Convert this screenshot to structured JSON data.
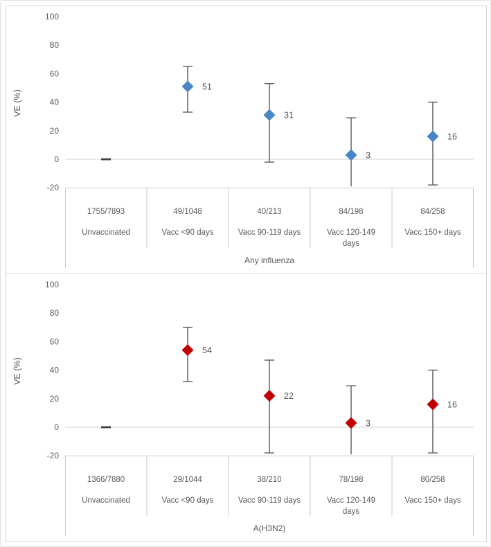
{
  "frame": {
    "outer_border_color": "#e3e3e3",
    "panel_border_color": "#d6d6d6",
    "background": "#ffffff"
  },
  "style": {
    "text_color": "#595959",
    "axis_line_color": "#c9c9c9",
    "zero_line_color": "#d9d9d9",
    "error_bar_color": "#595959",
    "reference_dash_color": "#404040"
  },
  "chart_data": [
    {
      "type": "scatter",
      "subtype": "point-estimate-with-error-bars",
      "group_label": "Any influenza",
      "ylabel": "VE (%)",
      "ylim": [
        -20,
        100
      ],
      "yticks": [
        100,
        80,
        60,
        40,
        20,
        0,
        -20
      ],
      "grid": "zero-line-only",
      "marker_shape": "diamond",
      "marker_color": "#4a86c6",
      "categories": [
        {
          "count": "1755/7893",
          "label_lines": [
            "Unvaccinated"
          ],
          "reference": true,
          "ve": 0
        },
        {
          "count": "49/1048",
          "label_lines": [
            "Vacc <90 days"
          ],
          "ve": 51,
          "ci_low": 33,
          "ci_high": 65
        },
        {
          "count": "40/213",
          "label_lines": [
            "Vacc 90-119 days"
          ],
          "ve": 31,
          "ci_low": -2,
          "ci_high": 53
        },
        {
          "count": "84/198",
          "label_lines": [
            "Vacc 120-149",
            "days"
          ],
          "ve": 3,
          "ci_low": -20,
          "ci_low_clipped": true,
          "ci_high": 29
        },
        {
          "count": "84/258",
          "label_lines": [
            "Vacc 150+ days"
          ],
          "ve": 16,
          "ci_low": -18,
          "ci_high": 40
        }
      ]
    },
    {
      "type": "scatter",
      "subtype": "point-estimate-with-error-bars",
      "group_label": "A(H3N2)",
      "ylabel": "VE (%)",
      "ylim": [
        -20,
        100
      ],
      "yticks": [
        100,
        80,
        60,
        40,
        20,
        0,
        -20
      ],
      "grid": "zero-line-only",
      "marker_shape": "diamond",
      "marker_color": "#c00000",
      "categories": [
        {
          "count": "1366/7880",
          "label_lines": [
            "Unvaccinated"
          ],
          "reference": true,
          "ve": 0
        },
        {
          "count": "29/1044",
          "label_lines": [
            "Vacc <90 days"
          ],
          "ve": 54,
          "ci_low": 32,
          "ci_high": 70
        },
        {
          "count": "38/210",
          "label_lines": [
            "Vacc 90-119 days"
          ],
          "ve": 22,
          "ci_low": -18,
          "ci_high": 47
        },
        {
          "count": "78/198",
          "label_lines": [
            "Vacc 120-149",
            "days"
          ],
          "ve": 3,
          "ci_low": -20,
          "ci_low_clipped": true,
          "ci_high": 29
        },
        {
          "count": "80/258",
          "label_lines": [
            "Vacc 150+ days"
          ],
          "ve": 16,
          "ci_low": -18,
          "ci_high": 40
        }
      ]
    }
  ]
}
